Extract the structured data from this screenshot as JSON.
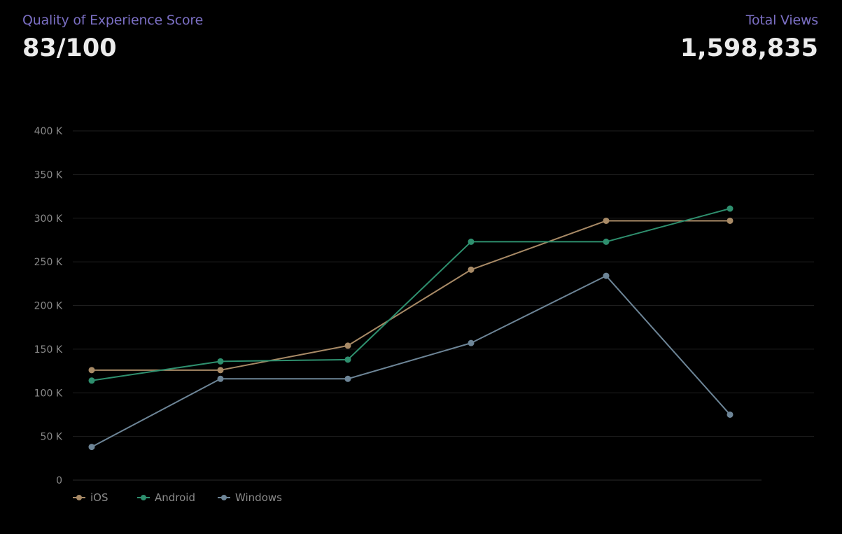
{
  "kpis": {
    "quality_label": "Quality of Experience Score",
    "quality_value": "83/100",
    "views_label": "Total Views",
    "views_value": "1,598,835"
  },
  "chart_data": {
    "type": "line",
    "x": [
      1,
      2,
      3,
      4,
      5,
      6
    ],
    "ylim": [
      0,
      400000
    ],
    "yticks": [
      {
        "value": 0,
        "label": "0"
      },
      {
        "value": 50000,
        "label": "50 K"
      },
      {
        "value": 100000,
        "label": "100 K"
      },
      {
        "value": 150000,
        "label": "150 K"
      },
      {
        "value": 200000,
        "label": "200 K"
      },
      {
        "value": 250000,
        "label": "250 K"
      },
      {
        "value": 300000,
        "label": "300 K"
      },
      {
        "value": 350000,
        "label": "350 K"
      },
      {
        "value": 400000,
        "label": "400 K"
      }
    ],
    "grid": true,
    "legend_position": "bottom-left",
    "series": [
      {
        "name": "iOS",
        "color": "#a88a66",
        "values": [
          126000,
          126000,
          154000,
          241000,
          297000,
          297000
        ]
      },
      {
        "name": "Android",
        "color": "#2e8f6e",
        "values": [
          114000,
          136000,
          138000,
          273000,
          273000,
          311000
        ]
      },
      {
        "name": "Windows",
        "color": "#6d8597",
        "values": [
          38000,
          116000,
          116000,
          157000,
          234000,
          75000
        ]
      }
    ]
  }
}
